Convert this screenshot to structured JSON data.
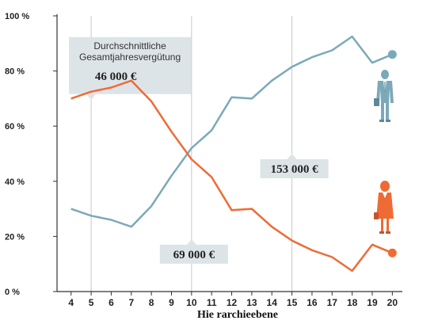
{
  "chart_data": {
    "type": "line",
    "title": "",
    "xlabel": "Hie rarchieebene",
    "ylabel": "",
    "x": [
      4,
      5,
      6,
      7,
      8,
      9,
      10,
      11,
      12,
      13,
      14,
      15,
      16,
      17,
      18,
      19,
      20
    ],
    "xlim": [
      3.3,
      20.5
    ],
    "ylim": [
      0,
      100
    ],
    "y_ticks": [
      "0 %",
      "20 %",
      "40 %",
      "60 %",
      "80 %",
      "100 %"
    ],
    "y_tick_values": [
      0,
      20,
      40,
      60,
      80,
      100
    ],
    "x_ticks": [
      "4",
      "5",
      "6",
      "7",
      "8",
      "9",
      "10",
      "11",
      "12",
      "13",
      "14",
      "15",
      "16",
      "17",
      "18",
      "19",
      "20"
    ],
    "grid": {
      "horizontal": false,
      "vertical_at": [
        5,
        10,
        15
      ]
    },
    "series": [
      {
        "name": "",
        "color": "#7ba9b9",
        "icon": "man-icon",
        "values": [
          30,
          27.5,
          26,
          23.5,
          31,
          42,
          52,
          58.5,
          70.5,
          70,
          76.5,
          81.5,
          85,
          87.5,
          92.5,
          83,
          86
        ]
      },
      {
        "name": "",
        "color": "#ef6b35",
        "icon": "woman-icon",
        "values": [
          70,
          72.5,
          74,
          76.5,
          69,
          58,
          48,
          41.5,
          29.5,
          30,
          23.5,
          18.5,
          15,
          12.5,
          7.5,
          17,
          14
        ]
      }
    ],
    "annotations": [
      {
        "id": "average",
        "title_lines": [
          "Durchschnittliche",
          "Gesamtjahresvergütung"
        ],
        "value": "46 000 €",
        "x": 5,
        "y": 90
      },
      {
        "id": "men",
        "title_lines": [],
        "value": "153 000 €",
        "x": 15,
        "y": 48
      },
      {
        "id": "women",
        "title_lines": [],
        "value": "69 000 €",
        "x": 10,
        "y": 17
      }
    ]
  }
}
